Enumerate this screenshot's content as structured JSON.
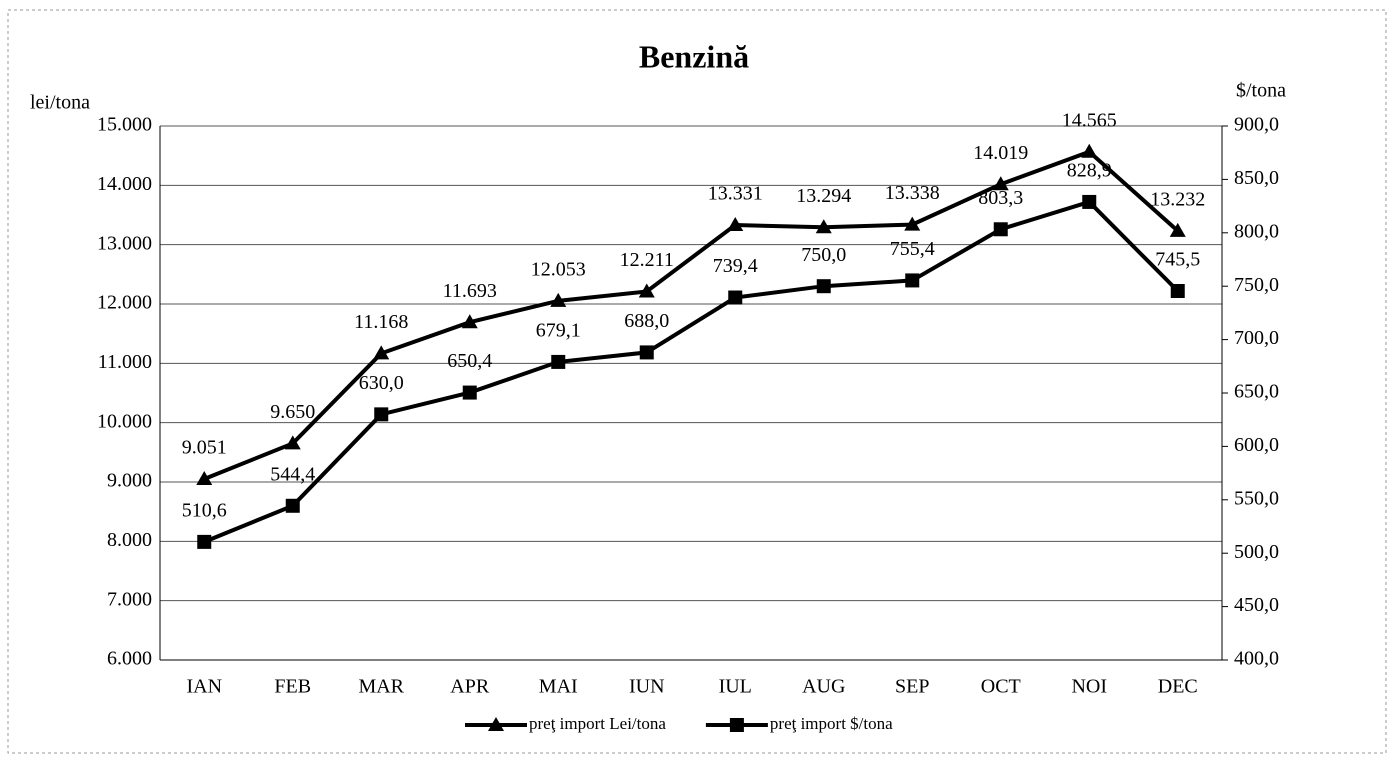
{
  "chart_data": {
    "type": "line",
    "title": "Benzină",
    "y_label": "lei/tona",
    "y2_label": "$/tona",
    "categories": [
      "IAN",
      "FEB",
      "MAR",
      "APR",
      "MAI",
      "IUN",
      "IUL",
      "AUG",
      "SEP",
      "OCT",
      "NOI",
      "DEC"
    ],
    "series": [
      {
        "name": "preţ import Lei/tona",
        "color": "#000000",
        "marker": "triangle",
        "values": [
          9051,
          9650,
          11168,
          11693,
          12053,
          12211,
          13331,
          13294,
          13338,
          14019,
          14565,
          13232
        ],
        "value_labels": [
          "9.051",
          "9.650",
          "11.168",
          "11.693",
          "12.053",
          "12.211",
          "13.331",
          "13.294",
          "13.338",
          "14.019",
          "14.565",
          "13.232"
        ]
      },
      {
        "name": "preţ import $/tona",
        "color": "#000000",
        "marker": "square",
        "axis": "y2",
        "values": [
          510.6,
          544.4,
          630.0,
          650.4,
          679.1,
          688.0,
          739.4,
          750.0,
          755.4,
          803.3,
          828.9,
          745.5
        ],
        "value_labels": [
          "510,6",
          "544,4",
          "630,0",
          "650,4",
          "679,1",
          "688,0",
          "739,4",
          "750,0",
          "755,4",
          "803,3",
          "828,9",
          "745,5"
        ]
      }
    ],
    "ylim": [
      6000,
      15000
    ],
    "yticks": [
      {
        "value": 6000,
        "label": "6.000"
      },
      {
        "value": 7000,
        "label": "7.000"
      },
      {
        "value": 8000,
        "label": "8.000"
      },
      {
        "value": 9000,
        "label": "9.000"
      },
      {
        "value": 10000,
        "label": "10.000"
      },
      {
        "value": 11000,
        "label": "11.000"
      },
      {
        "value": 12000,
        "label": "12.000"
      },
      {
        "value": 13000,
        "label": "13.000"
      },
      {
        "value": 14000,
        "label": "14.000"
      },
      {
        "value": 15000,
        "label": "15.000"
      }
    ],
    "y2lim": [
      400,
      900
    ],
    "y2ticks": [
      {
        "value": 400,
        "label": "400,0"
      },
      {
        "value": 450,
        "label": "450,0"
      },
      {
        "value": 500,
        "label": "500,0"
      },
      {
        "value": 550,
        "label": "550,0"
      },
      {
        "value": 600,
        "label": "600,0"
      },
      {
        "value": 650,
        "label": "650,0"
      },
      {
        "value": 700,
        "label": "700,0"
      },
      {
        "value": 750,
        "label": "750,0"
      },
      {
        "value": 800,
        "label": "800,0"
      },
      {
        "value": 850,
        "label": "850,0"
      },
      {
        "value": 900,
        "label": "900,0"
      }
    ],
    "grid": true,
    "legend": "bottom"
  }
}
